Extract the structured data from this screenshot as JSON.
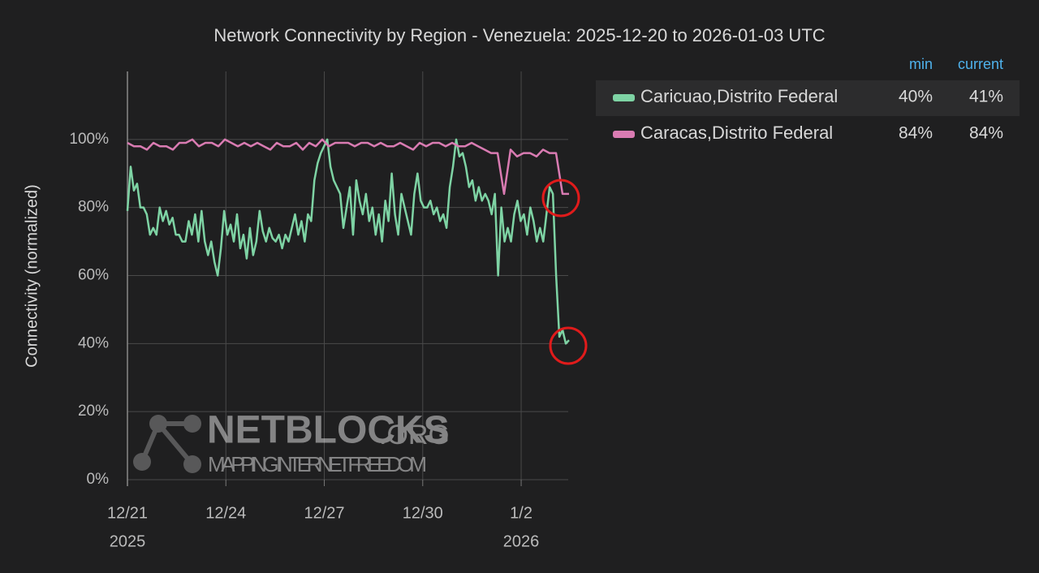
{
  "chart_data": {
    "type": "line",
    "title": "Network Connectivity by Region - Venezuela: 2025-12-20 to 2026-01-03 UTC",
    "y_label": "Connectivity (normalized)",
    "ylim": [
      0,
      120
    ],
    "yticks": [
      {
        "value": 0,
        "label": "0%"
      },
      {
        "value": 20,
        "label": "20%"
      },
      {
        "value": 40,
        "label": "40%"
      },
      {
        "value": 60,
        "label": "60%"
      },
      {
        "value": 80,
        "label": "80%"
      },
      {
        "value": 100,
        "label": "100%"
      }
    ],
    "xlim": [
      "2025-12-21T00:00",
      "2026-01-03T11:00"
    ],
    "xticks": [
      {
        "value": "2025-12-21T00:00",
        "label": "12/21",
        "year": "2025"
      },
      {
        "value": "2025-12-24T00:00",
        "label": "12/24"
      },
      {
        "value": "2025-12-27T00:00",
        "label": "12/27"
      },
      {
        "value": "2025-12-30T00:00",
        "label": "12/30"
      },
      {
        "value": "2026-01-02T00:00",
        "label": "1/2",
        "year": "2026"
      }
    ],
    "grid": true,
    "legend_headers": [
      "min",
      "current"
    ],
    "series": [
      {
        "name": "Caricuao,Distrito Federal",
        "color": "#7ed3a4",
        "min": "40%",
        "current": "41%",
        "values": [
          79,
          92,
          85,
          87,
          80,
          80,
          78,
          72,
          74,
          72,
          80,
          76,
          79,
          75,
          77,
          72,
          72,
          70,
          70,
          76,
          72,
          78,
          70,
          79,
          70,
          66,
          70,
          64,
          60,
          68,
          79,
          72,
          75,
          70,
          78,
          68,
          72,
          65,
          74,
          66,
          70,
          79,
          73,
          70,
          74,
          71,
          70,
          72,
          68,
          72,
          70,
          74,
          78,
          72,
          76,
          70,
          78,
          76,
          88,
          93,
          96,
          98,
          100,
          92,
          88,
          86,
          84,
          74,
          80,
          86,
          72,
          88,
          82,
          78,
          84,
          76,
          80,
          72,
          78,
          70,
          82,
          76,
          90,
          78,
          72,
          84,
          80,
          76,
          72,
          84,
          90,
          82,
          80,
          80,
          82,
          78,
          80,
          76,
          78,
          74,
          86,
          92,
          100,
          95,
          96,
          92,
          86,
          88,
          82,
          86,
          82,
          84,
          82,
          78,
          84,
          60,
          80,
          70,
          74,
          70,
          78,
          82,
          76,
          78,
          72,
          80,
          76,
          70,
          74,
          70,
          78,
          86,
          84,
          60,
          42,
          44,
          40,
          41
        ]
      },
      {
        "name": "Caracas,Distrito Federal",
        "color": "#d97bb2",
        "min": "84%",
        "current": "84%",
        "values": [
          99,
          98,
          98,
          97,
          99,
          98,
          98,
          97,
          99,
          99,
          100,
          98,
          99,
          99,
          98,
          100,
          99,
          98,
          99,
          98,
          99,
          98,
          97,
          99,
          98,
          98,
          99,
          97,
          99,
          98,
          100,
          98,
          99,
          99,
          99,
          98,
          99,
          99,
          98,
          99,
          98,
          98,
          99,
          98,
          97,
          99,
          98,
          99,
          99,
          98,
          99,
          98,
          98,
          99,
          98,
          97,
          96,
          96,
          84,
          97,
          95,
          96,
          96,
          95,
          97,
          96,
          96,
          84,
          84
        ]
      }
    ],
    "watermark": {
      "brand": "NETBLOCKS",
      "suffix": ".ORG",
      "tagline": "MAPPING INTERNET FREEDOM"
    }
  }
}
